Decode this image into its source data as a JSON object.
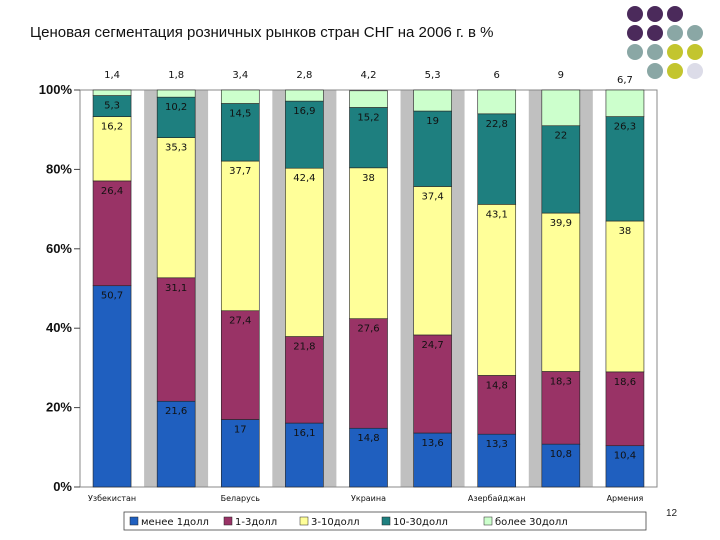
{
  "title": "Ценовая сегментация розничных рынков стран СНГ на 2006 г. в %",
  "page_number": "12",
  "decor_colors": [
    "#4b2a5b",
    "#8aa7a5",
    "#c3c52e",
    "#dcdce8"
  ],
  "chart_data": {
    "type": "bar",
    "stacked": true,
    "ylim": [
      0,
      100
    ],
    "yticks": [
      "0%",
      "20%",
      "40%",
      "60%",
      "80%",
      "100%"
    ],
    "grid": false,
    "legend_position": "bottom",
    "categories": [
      "Узбекистан",
      "",
      "Беларусь",
      "",
      "Украина",
      "",
      "Азербайджан",
      "",
      "Армения"
    ],
    "top_labels": [
      "1,4",
      "1,8",
      "3,4",
      "2,8",
      "4,2",
      "5,3",
      "6",
      "9",
      "6,7"
    ],
    "series": [
      {
        "name": "менее 1долл",
        "color": "#1f5fbf",
        "values": [
          50.7,
          21.6,
          17,
          16.1,
          14.8,
          13.6,
          13.3,
          10.8,
          10.4
        ]
      },
      {
        "name": "1-3долл",
        "color": "#993366",
        "values": [
          26.4,
          31.1,
          27.4,
          21.8,
          27.6,
          24.7,
          14.8,
          18.3,
          18.6
        ]
      },
      {
        "name": "3-10долл",
        "color": "#ffff99",
        "values": [
          16.2,
          35.3,
          37.7,
          42.4,
          38,
          37.4,
          43.1,
          39.9,
          38
        ]
      },
      {
        "name": "10-30долл",
        "color": "#1e7f7f",
        "values": [
          5.3,
          10.2,
          14.5,
          16.9,
          15.2,
          19,
          22.8,
          22,
          26.3
        ]
      },
      {
        "name": "более 30долл",
        "color": "#ccffcc",
        "values": [
          1.4,
          1.8,
          3.4,
          2.8,
          4.2,
          5.3,
          6,
          9,
          6.7
        ]
      }
    ],
    "segment_labels": [
      [
        "50,7",
        "26,4",
        "16,2",
        "5,3",
        ""
      ],
      [
        "21,6",
        "31,1",
        "35,3",
        "10,2",
        ""
      ],
      [
        "17",
        "27,4",
        "37,7",
        "14,5",
        ""
      ],
      [
        "16,1",
        "21,8",
        "42,4",
        "16,9",
        ""
      ],
      [
        "14,8",
        "27,6",
        "38",
        "15,2",
        ""
      ],
      [
        "13,6",
        "24,7",
        "37,4",
        "19",
        ""
      ],
      [
        "13,3",
        "14,8",
        "43,1",
        "22,8",
        ""
      ],
      [
        "10,8",
        "18,3",
        "39,9",
        "22",
        ""
      ],
      [
        "10,4",
        "18,6",
        "38",
        "26,3",
        ""
      ]
    ]
  }
}
